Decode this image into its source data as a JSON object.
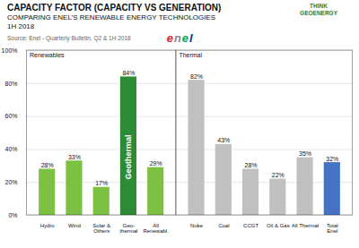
{
  "chart_data": {
    "type": "bar",
    "title": "CAPACITY FACTOR (CAPACITY VS GENERATION)",
    "subtitle": [
      "COMPARING ENEL’S RENEWABLE ENERGY TECHNOLOGIES",
      "1H 2018"
    ],
    "source": "Source: Enel - Quarterly Bulletin, Q2 & 1H 2018",
    "categories": [
      "Hydro",
      "Wind",
      "Solar &\nOthers",
      "Geo-\nthermal",
      "All\nRenewabl.",
      "Nuke",
      "Coal",
      "CCGT",
      "Oil & Gas",
      "All Thermal",
      "Total\nEnel"
    ],
    "group": [
      "Renewables",
      "Renewables",
      "Renewables",
      "Renewables",
      "Renewables",
      "Thermal",
      "Thermal",
      "Thermal",
      "Thermal",
      "Thermal",
      "Thermal"
    ],
    "values": [
      28,
      33,
      17,
      84,
      29,
      82,
      43,
      28,
      22,
      35,
      32
    ],
    "value_labels": [
      "28%",
      "33%",
      "17%",
      "84%",
      "29%",
      "82%",
      "43%",
      "28%",
      "22%",
      "35%",
      "32%"
    ],
    "data_labels": true,
    "colors": [
      "#7DC142",
      "#7DC142",
      "#7DC142",
      "#2E8B35",
      "#7DC142",
      "#C0C0C0",
      "#C0C0C0",
      "#C0C0C0",
      "#C0C0C0",
      "#C0C0C0",
      "#4472C4"
    ],
    "ylim": [
      0,
      100
    ],
    "yticks": [
      {
        "value": 0,
        "label": "0%"
      },
      {
        "value": 20,
        "label": "20%"
      },
      {
        "value": 40,
        "label": "40%"
      },
      {
        "value": 60,
        "label": "60%"
      },
      {
        "value": 80,
        "label": "80%"
      },
      {
        "value": 100,
        "label": "100%"
      }
    ],
    "grid": true,
    "annotations": [
      {
        "text": "Geothermal",
        "category": "Geo-\nthermal"
      },
      {
        "text": "enel",
        "colors": [
          "#E31837",
          "#888888",
          "#00A650",
          "#0033A0"
        ]
      },
      {
        "text": "THINK\nGEOENERGY",
        "color": "#2E7D32"
      }
    ]
  }
}
